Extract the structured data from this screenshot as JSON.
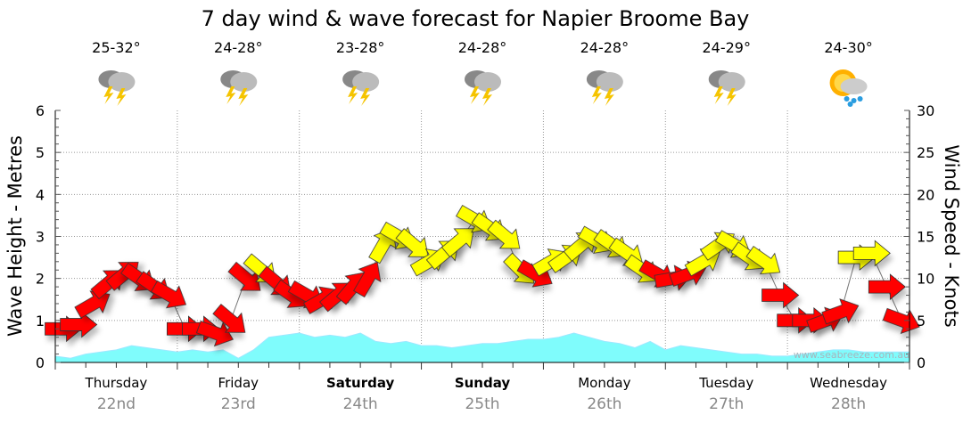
{
  "chart_data": {
    "type": "line",
    "title": "7 day wind & wave forecast for Napier Broome Bay",
    "ylabel": "Wave Height - Metres",
    "y2label": "Wind Speed - Knots",
    "ylim": [
      0,
      6
    ],
    "y2lim": [
      0,
      30
    ],
    "yticks": [
      "0",
      "1",
      "2",
      "3",
      "4",
      "5",
      "6"
    ],
    "y2ticks": [
      "0",
      "5",
      "10",
      "15",
      "20",
      "25",
      "30"
    ],
    "grid": true,
    "watermark": "www.seabreeze.com.au",
    "days": [
      {
        "name": "Thursday",
        "date": "22nd",
        "temp": "25-32°",
        "icon": "thunderstorm-icon",
        "bold": false
      },
      {
        "name": "Friday",
        "date": "23rd",
        "temp": "24-28°",
        "icon": "thunderstorm-icon",
        "bold": false
      },
      {
        "name": "Saturday",
        "date": "24th",
        "temp": "23-28°",
        "icon": "thunderstorm-icon",
        "bold": true
      },
      {
        "name": "Sunday",
        "date": "25th",
        "temp": "24-28°",
        "icon": "thunderstorm-icon",
        "bold": true
      },
      {
        "name": "Monday",
        "date": "26th",
        "temp": "24-28°",
        "icon": "thunderstorm-icon",
        "bold": false
      },
      {
        "name": "Tuesday",
        "date": "27th",
        "temp": "24-29°",
        "icon": "thunderstorm-icon",
        "bold": false
      },
      {
        "name": "Wednesday",
        "date": "28th",
        "temp": "24-30°",
        "icon": "sun-cloud-rain-icon",
        "bold": false
      }
    ],
    "interval_hours": 3,
    "wind_knots": [
      4,
      4.5,
      7,
      9.5,
      10.5,
      10,
      9,
      8,
      4,
      4,
      3.5,
      5,
      10,
      11,
      9.5,
      8,
      8,
      7.5,
      8,
      9,
      10,
      14,
      15,
      14,
      12,
      13,
      14.5,
      17,
      16,
      15,
      11,
      10.5,
      12,
      12.5,
      14,
      14.5,
      14,
      13,
      11,
      10.5,
      10,
      10.5,
      12,
      14,
      14,
      12.5,
      12,
      8,
      5,
      5,
      5,
      6,
      12.5,
      13,
      9,
      5
    ],
    "wind_dir_deg": [
      0,
      0,
      -30,
      -40,
      -40,
      35,
      35,
      30,
      0,
      0,
      20,
      40,
      40,
      40,
      40,
      35,
      30,
      -30,
      -40,
      -50,
      -60,
      -60,
      30,
      40,
      -30,
      -40,
      -40,
      30,
      35,
      40,
      45,
      30,
      -30,
      -35,
      -40,
      30,
      35,
      35,
      35,
      30,
      -10,
      -20,
      -30,
      -35,
      30,
      35,
      35,
      0,
      0,
      0,
      -20,
      -20,
      0,
      0,
      0,
      20
    ],
    "wind_colors": {
      "low": "#ff0000",
      "high": "#ffff00",
      "threshold_knots": 11
    },
    "wave_m": [
      0.15,
      0.1,
      0.2,
      0.25,
      0.3,
      0.4,
      0.35,
      0.3,
      0.25,
      0.3,
      0.25,
      0.3,
      0.1,
      0.3,
      0.6,
      0.65,
      0.7,
      0.6,
      0.65,
      0.6,
      0.7,
      0.5,
      0.45,
      0.5,
      0.4,
      0.4,
      0.35,
      0.4,
      0.45,
      0.45,
      0.5,
      0.55,
      0.55,
      0.6,
      0.7,
      0.6,
      0.5,
      0.45,
      0.35,
      0.5,
      0.3,
      0.4,
      0.35,
      0.3,
      0.25,
      0.2,
      0.2,
      0.15,
      0.15,
      0.2,
      0.25,
      0.3,
      0.3,
      0.25,
      0.25,
      0.25,
      0.25
    ],
    "wave_color": "#7ffcfc"
  }
}
